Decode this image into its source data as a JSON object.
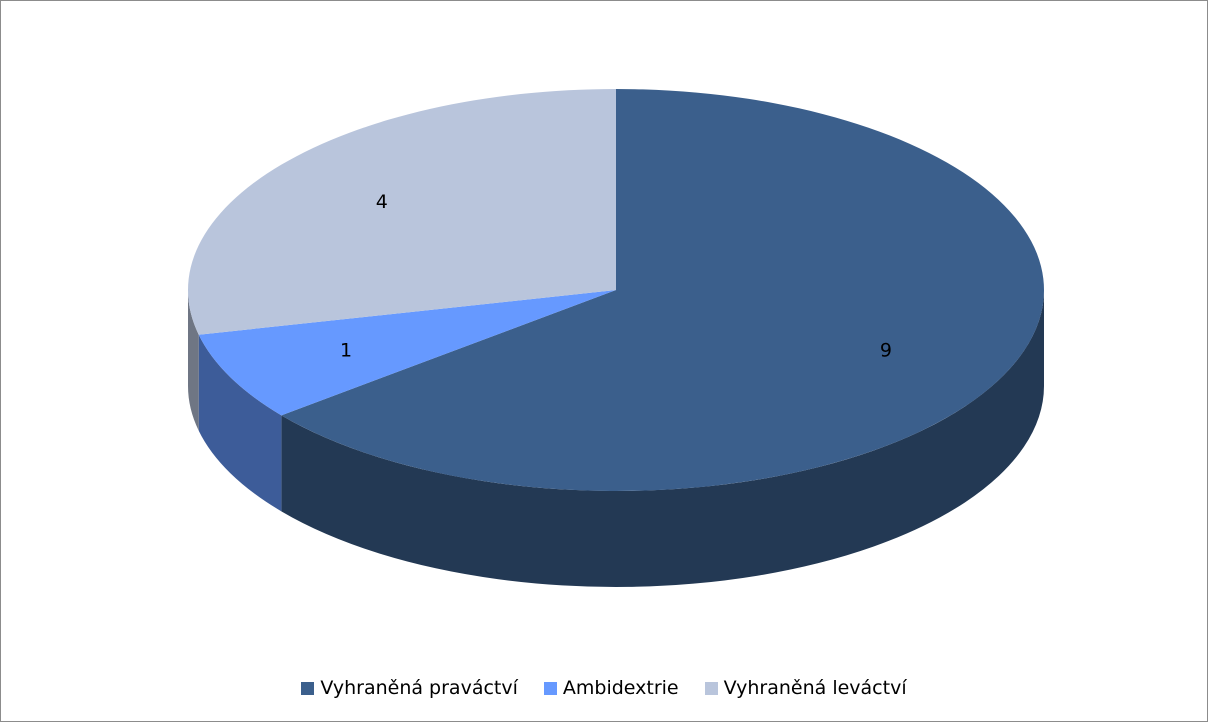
{
  "chart_data": {
    "type": "pie",
    "categories": [
      "Vyhraněná praváctví",
      "Ambidextrie",
      "Vyhraněná leváctví"
    ],
    "values": [
      9,
      1,
      4
    ],
    "colors": [
      "#3b5f8c",
      "#6699ff",
      "#b9c5dc"
    ]
  }
}
